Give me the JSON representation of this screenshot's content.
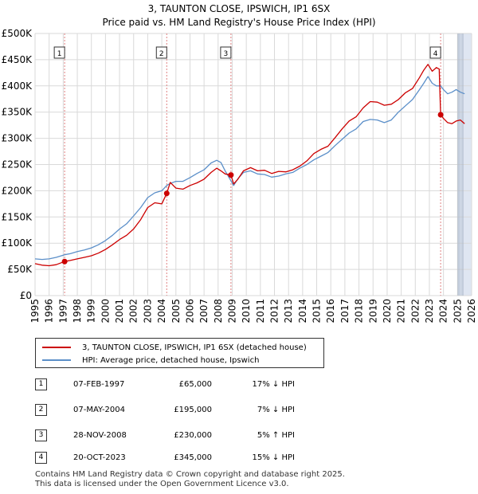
{
  "title_line1": "3, TAUNTON CLOSE, IPSWICH, IP1 6SX",
  "title_line2": "Price paid vs. HM Land Registry's House Price Index (HPI)",
  "legend": {
    "series1": "3, TAUNTON CLOSE, IPSWICH, IP1 6SX (detached house)",
    "series2": "HPI: Average price, detached house, Ipswich"
  },
  "transactions": [
    {
      "num": "1",
      "date": "07-FEB-1997",
      "price": "£65,000",
      "hpi": "17% ↓ HPI"
    },
    {
      "num": "2",
      "date": "07-MAY-2004",
      "price": "£195,000",
      "hpi": "7% ↓ HPI"
    },
    {
      "num": "3",
      "date": "28-NOV-2008",
      "price": "£230,000",
      "hpi": "5% ↑ HPI"
    },
    {
      "num": "4",
      "date": "20-OCT-2023",
      "price": "£345,000",
      "hpi": "15% ↓ HPI"
    }
  ],
  "footer_line1": "Contains HM Land Registry data © Crown copyright and database right 2025.",
  "footer_line2": "This data is licensed under the Open Government Licence v3.0.",
  "colors": {
    "property": "#cc0000",
    "hpi": "#5b8fc9",
    "grid": "#d9d9d9",
    "shade": "#dfe6f2",
    "marker_line": "#e08080"
  },
  "chart_data": {
    "type": "line",
    "xlim": [
      1995,
      2026
    ],
    "ylim": [
      0,
      500000
    ],
    "y_ticks": [
      0,
      50000,
      100000,
      150000,
      200000,
      250000,
      300000,
      350000,
      400000,
      450000,
      500000
    ],
    "y_tick_labels": [
      "£0",
      "£50K",
      "£100K",
      "£150K",
      "£200K",
      "£250K",
      "£300K",
      "£350K",
      "£400K",
      "£450K",
      "£500K"
    ],
    "x_ticks": [
      1995,
      1996,
      1997,
      1998,
      1999,
      2000,
      2001,
      2002,
      2003,
      2004,
      2005,
      2006,
      2007,
      2008,
      2009,
      2010,
      2011,
      2012,
      2013,
      2014,
      2015,
      2016,
      2017,
      2018,
      2019,
      2020,
      2021,
      2022,
      2023,
      2024,
      2025,
      2026
    ],
    "x_tick_labels": [
      "1995",
      "1996",
      "1997",
      "1998",
      "1999",
      "2000",
      "2001",
      "2002",
      "2003",
      "2004",
      "2005",
      "2006",
      "2007",
      "2008",
      "2009",
      "2010",
      "2011",
      "2012",
      "2013",
      "2014",
      "2015",
      "2016",
      "2017",
      "2018",
      "2019",
      "2020",
      "2021",
      "2022",
      "2023",
      "2024",
      "2025",
      "2026"
    ],
    "future_shade_from": 2025.0,
    "series": [
      {
        "name": "3, TAUNTON CLOSE, IPSWICH, IP1 6SX (detached house)",
        "x": [
          1995.0,
          1995.5,
          1996.0,
          1996.5,
          1997.1,
          1997.5,
          1998.0,
          1998.5,
          1999.0,
          1999.5,
          2000.0,
          2000.5,
          2001.0,
          2001.5,
          2002.0,
          2002.5,
          2003.0,
          2003.5,
          2004.0,
          2004.35,
          2004.6,
          2005.0,
          2005.5,
          2006.0,
          2006.5,
          2007.0,
          2007.5,
          2007.9,
          2008.2,
          2008.5,
          2008.91,
          2009.1,
          2009.4,
          2009.8,
          2010.3,
          2010.8,
          2011.3,
          2011.8,
          2012.3,
          2012.8,
          2013.3,
          2013.8,
          2014.3,
          2014.8,
          2015.3,
          2015.8,
          2016.3,
          2016.8,
          2017.3,
          2017.8,
          2018.3,
          2018.8,
          2019.3,
          2019.8,
          2020.3,
          2020.8,
          2021.3,
          2021.8,
          2022.3,
          2022.6,
          2022.9,
          2023.2,
          2023.5,
          2023.7,
          2023.8,
          2024.0,
          2024.3,
          2024.6,
          2024.9,
          2025.2,
          2025.5
        ],
        "values": [
          61000,
          58000,
          57000,
          59000,
          65000,
          67000,
          70000,
          73000,
          76000,
          81000,
          88000,
          97000,
          107000,
          115000,
          127000,
          145000,
          168000,
          177000,
          175000,
          195000,
          216000,
          205000,
          203000,
          210000,
          215000,
          222000,
          235000,
          243000,
          238000,
          232000,
          230000,
          213000,
          222000,
          238000,
          244000,
          238000,
          239000,
          233000,
          237000,
          236000,
          240000,
          247000,
          257000,
          271000,
          279000,
          285000,
          301000,
          318000,
          333000,
          341000,
          358000,
          370000,
          369000,
          363000,
          365000,
          374000,
          387000,
          395000,
          416000,
          430000,
          441000,
          428000,
          435000,
          432000,
          345000,
          338000,
          330000,
          328000,
          333000,
          335000,
          328000
        ]
      },
      {
        "name": "HPI: Average price, detached house, Ipswich",
        "x": [
          1995.0,
          1995.5,
          1996.0,
          1996.5,
          1997.1,
          1997.5,
          1998.0,
          1998.5,
          1999.0,
          1999.5,
          2000.0,
          2000.5,
          2001.0,
          2001.5,
          2002.0,
          2002.5,
          2003.0,
          2003.5,
          2004.0,
          2004.35,
          2004.6,
          2005.0,
          2005.5,
          2006.0,
          2006.5,
          2007.0,
          2007.5,
          2007.9,
          2008.2,
          2008.5,
          2008.91,
          2009.1,
          2009.4,
          2009.8,
          2010.3,
          2010.8,
          2011.3,
          2011.8,
          2012.3,
          2012.8,
          2013.3,
          2013.8,
          2014.3,
          2014.8,
          2015.3,
          2015.8,
          2016.3,
          2016.8,
          2017.3,
          2017.8,
          2018.3,
          2018.8,
          2019.3,
          2019.8,
          2020.3,
          2020.8,
          2021.3,
          2021.8,
          2022.3,
          2022.6,
          2022.9,
          2023.2,
          2023.5,
          2023.7,
          2023.8,
          2024.0,
          2024.3,
          2024.6,
          2024.9,
          2025.2,
          2025.5
        ],
        "values": [
          70000,
          69000,
          70000,
          73000,
          78000,
          80000,
          84000,
          87000,
          91000,
          97000,
          105000,
          115000,
          127000,
          137000,
          152000,
          168000,
          187000,
          196000,
          200000,
          210000,
          214000,
          218000,
          218000,
          225000,
          233000,
          240000,
          253000,
          258000,
          254000,
          238000,
          219000,
          210000,
          223000,
          235000,
          238000,
          232000,
          231000,
          226000,
          228000,
          232000,
          235000,
          243000,
          250000,
          259000,
          266000,
          273000,
          286000,
          298000,
          310000,
          318000,
          332000,
          336000,
          335000,
          330000,
          335000,
          350000,
          362000,
          374000,
          393000,
          405000,
          418000,
          405000,
          400000,
          400000,
          400000,
          393000,
          385000,
          388000,
          393000,
          388000,
          385000
        ]
      }
    ],
    "sales": [
      {
        "label": "1",
        "x": 1997.1,
        "value": 65000
      },
      {
        "label": "2",
        "x": 2004.35,
        "value": 195000
      },
      {
        "label": "3",
        "x": 2008.91,
        "value": 230000
      },
      {
        "label": "4",
        "x": 2023.8,
        "value": 345000
      }
    ]
  }
}
